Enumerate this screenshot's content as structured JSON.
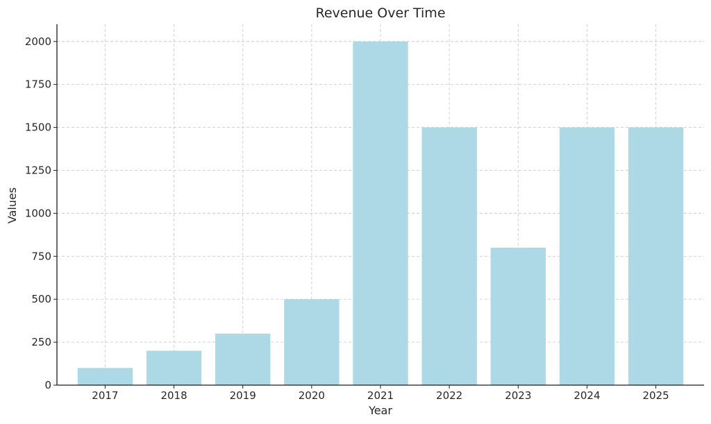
{
  "chart_data": {
    "type": "bar",
    "title": "Revenue Over Time",
    "xlabel": "Year",
    "ylabel": "Values",
    "categories": [
      "2017",
      "2018",
      "2019",
      "2020",
      "2021",
      "2022",
      "2023",
      "2024",
      "2025"
    ],
    "values": [
      100,
      200,
      300,
      500,
      2000,
      1500,
      800,
      1500,
      1500
    ],
    "ylim": [
      0,
      2100
    ],
    "yticks": [
      0,
      250,
      500,
      750,
      1000,
      1250,
      1500,
      1750,
      2000
    ],
    "bar_color": "#add8e6",
    "grid": true,
    "legend": "none"
  }
}
